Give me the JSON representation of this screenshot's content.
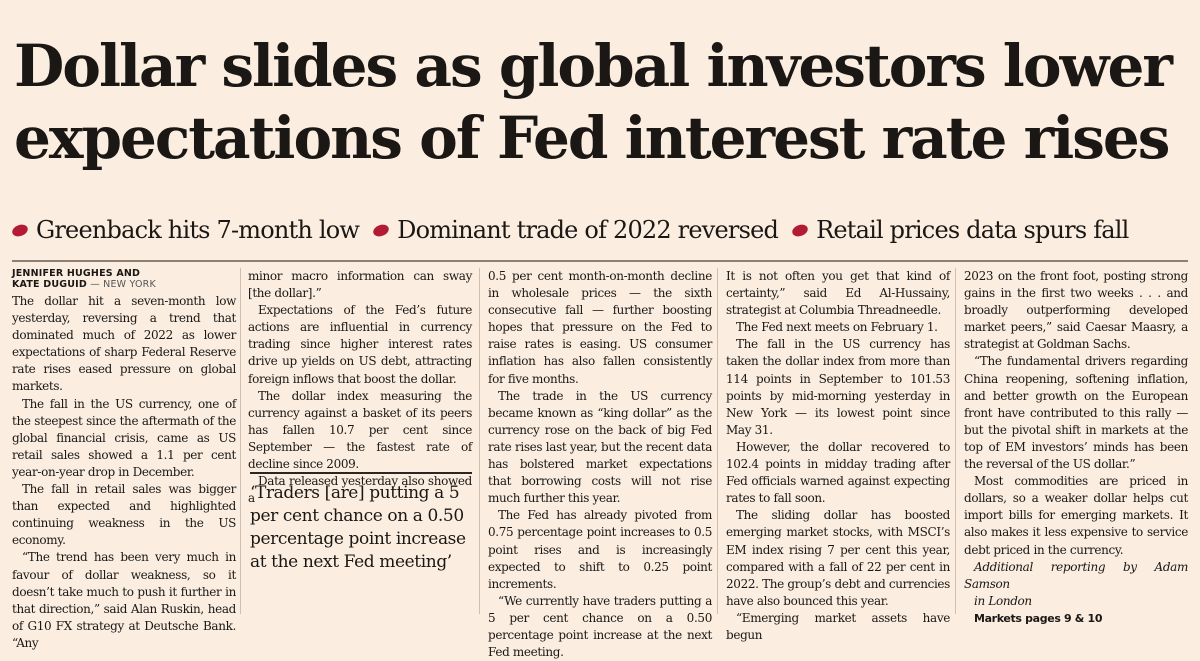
{
  "headline": {
    "line1": "Dollar slides as global investors lower",
    "line2": "expectations of Fed interest rate rises"
  },
  "subheads": [
    "Greenback hits 7-month low",
    "Dominant trade of 2022 reversed",
    "Retail prices data spurs fall"
  ],
  "byline": {
    "names_line1": "JENNIFER HUGHES AND",
    "names_line2": "KATE DUGUID",
    "location": "— NEW YORK"
  },
  "columns": {
    "col1": [
      "The dollar hit a seven-month low yesterday, reversing a trend that dominated much of 2022 as lower expectations of sharp Federal Reserve rate rises eased pressure on global markets.",
      "The fall in the US currency, one of the steepest since the aftermath of the global financial crisis, came as US retail sales showed a 1.1 per cent year-on-year drop in December.",
      "The fall in retail sales was bigger than expected and highlighted continuing weakness in the US economy.",
      "“The trend has been very much in favour of dollar weakness, so it doesn’t take much to push it further in that direction,” said Alan Ruskin, head of G10 FX strategy at Deutsche Bank. “Any"
    ],
    "col2": [
      "minor macro information can sway [the dollar].”",
      "Expectations of the Fed’s future actions are influential in currency trading since higher interest rates drive up yields on US debt, attracting foreign inflows that boost the dollar.",
      "The dollar index measuring the currency against a basket of its peers has fallen 10.7 per cent since September — the fastest rate of decline since 2009.",
      "Data released yesterday also showed a"
    ],
    "col3": [
      "0.5 per cent month-on-month decline in wholesale prices — the sixth consecutive fall — further boosting hopes that pressure on the Fed to raise rates is easing. US consumer inflation has also fallen consistently for five months.",
      "The trade in the US currency became known as “king dollar” as the currency rose on the back of big Fed rate rises last year, but the recent data has bolstered market expectations that borrowing costs will not rise much further this year.",
      "The Fed has already pivoted from 0.75 percentage point increases to 0.5 point rises and is increasingly expected to shift to 0.25 point increments.",
      "“We currently have traders putting a 5 per cent chance on a 0.50 percentage point increase at the next Fed meeting."
    ],
    "col4": [
      "It is not often you get that kind of certainty,” said Ed Al-Hussainy, strategist at Columbia Threadneedle.",
      "The Fed next meets on February 1.",
      "The fall in the US currency has taken the dollar index from more than 114 points in September to 101.53 points by mid-morning yesterday in New York — its lowest point since May 31.",
      "However, the dollar recovered to 102.4 points in midday trading after Fed officials warned against expecting rates to fall soon.",
      "The sliding dollar has boosted emerging market stocks, with MSCI’s EM index rising 7 per cent this year, compared with a fall of 22 per cent in 2022. The group’s debt and currencies have also bounced this year.",
      "“Emerging market assets have begun"
    ],
    "col5": [
      "2023 on the front foot, posting strong gains in the first two weeks . . . and broadly outperforming developed market peers,” said Caesar Maasry, a strategist at Goldman Sachs.",
      "“The fundamental drivers regarding China reopening, softening inflation, and better growth on the European front have contributed to this rally — but the pivotal shift in markets at the top of EM investors’ minds has been the reversal of the US dollar.”",
      "Most commodities are priced in dollars, so a weaker dollar helps cut import bills for emerging markets. It also makes it less expensive to service debt priced in the currency."
    ]
  },
  "pullquote": "‘Traders [are] putting a 5 per cent chance on a 0.50 percentage point increase at the next Fed meeting’",
  "credit_line1": "Additional reporting by Adam Samson",
  "credit_line2": "in London",
  "markets_ref": "Markets pages 9 & 10",
  "colors": {
    "bullet": "#b31b34",
    "paper": "#fbeee0",
    "ink": "#1a1715"
  }
}
